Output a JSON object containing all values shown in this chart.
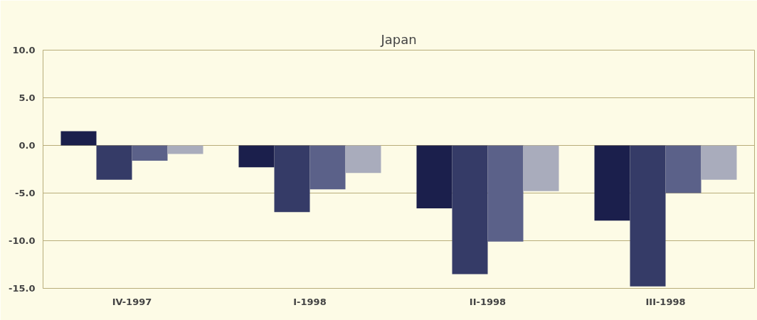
{
  "chart_data": {
    "type": "bar",
    "title": "Japan",
    "categories": [
      "IV-1997",
      "I-1998",
      "II-1998",
      "III-1998"
    ],
    "series": [
      {
        "color": "#1b1f4c",
        "values": [
          1.5,
          -2.3,
          -6.6,
          -7.9
        ]
      },
      {
        "color": "#353b67",
        "values": [
          -3.6,
          -7.0,
          -13.5,
          -14.8
        ]
      },
      {
        "color": "#5b6189",
        "values": [
          -1.6,
          -4.6,
          -10.1,
          -5.0
        ]
      },
      {
        "color": "#a9acbc",
        "values": [
          -0.9,
          -2.9,
          -4.8,
          -3.6
        ]
      }
    ],
    "ylim": [
      -15,
      10
    ],
    "yticks": [
      {
        "value": -15,
        "label": "-15.0"
      },
      {
        "value": -10,
        "label": "-10.0"
      },
      {
        "value": -5,
        "label": "-5.0"
      },
      {
        "value": 0,
        "label": "0.0"
      },
      {
        "value": 5,
        "label": "5.0"
      },
      {
        "value": 10,
        "label": "10.0"
      }
    ],
    "grid": "y"
  }
}
